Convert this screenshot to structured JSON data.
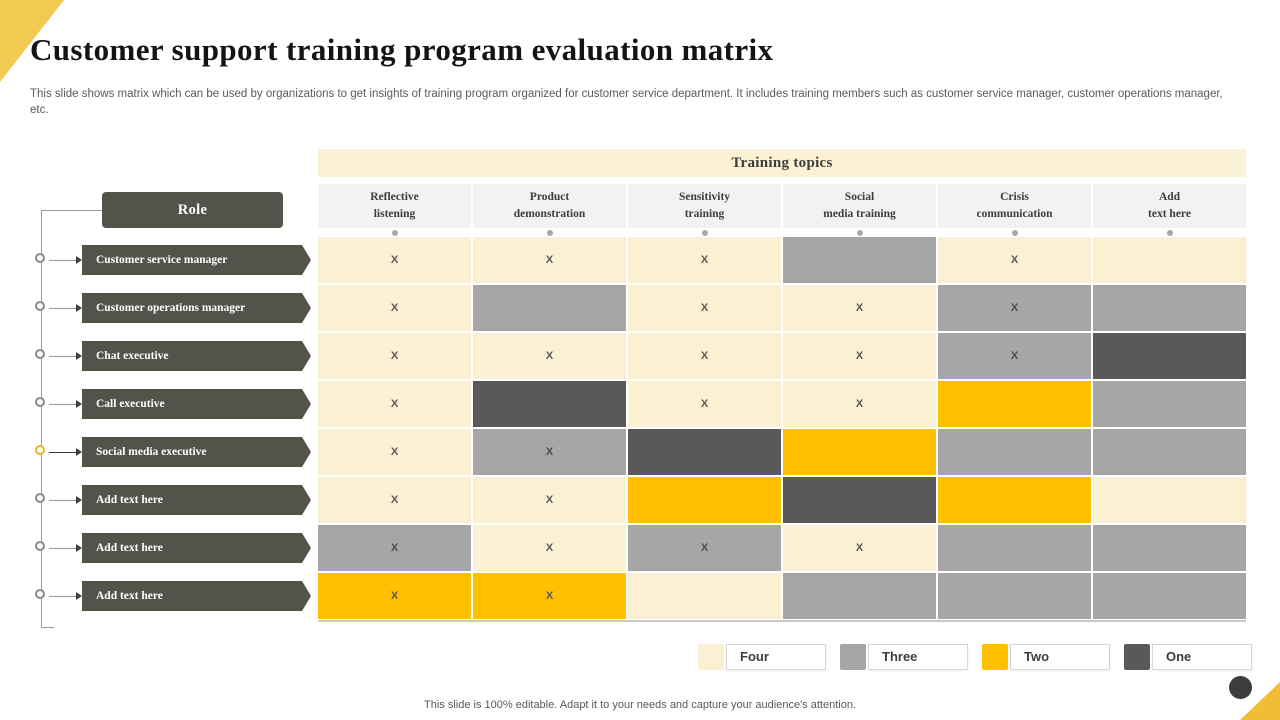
{
  "slide": {
    "title": "Customer support training program evaluation matrix",
    "description": "This slide shows matrix which can be used by organizations to get insights of training program organized for customer service department. It includes training members such as customer service manager, customer operations manager, etc.",
    "footer": "This slide is 100% editable. Adapt it to your needs and capture your audience's attention."
  },
  "theme": {
    "accent_yellow": "#FFC000",
    "corner_triangle_yellow": "#F2CA52",
    "dark_label": "#54534B",
    "cream_band": "#FBF2D5",
    "header_gray": "#F2F2F2"
  },
  "matrix": {
    "header": "Training topics",
    "role_label": "Role",
    "columns": [
      "Reflective\nlistening",
      "Product\ndemonstration",
      "Sensitivity\ntraining",
      "Social\nmedia training",
      "Crisis\ncommunication",
      "Add\ntext here"
    ],
    "levels": {
      "four": {
        "label": "Four",
        "color": "#FBF0D2"
      },
      "three": {
        "label": "Three",
        "color": "#A6A6A6"
      },
      "two": {
        "label": "Two",
        "color": "#FFC000"
      },
      "one": {
        "label": "One",
        "color": "#595959"
      }
    },
    "legend_order": [
      "four",
      "three",
      "two",
      "one"
    ],
    "rows": [
      {
        "label": "Customer service manager",
        "cells": [
          {
            "level": "four",
            "mark": "X"
          },
          {
            "level": "four",
            "mark": "X"
          },
          {
            "level": "four",
            "mark": "X"
          },
          {
            "level": "three",
            "mark": ""
          },
          {
            "level": "four",
            "mark": "X"
          },
          {
            "level": "four",
            "mark": ""
          }
        ]
      },
      {
        "label": "Customer operations manager",
        "cells": [
          {
            "level": "four",
            "mark": "X"
          },
          {
            "level": "three",
            "mark": ""
          },
          {
            "level": "four",
            "mark": "X"
          },
          {
            "level": "four",
            "mark": "X"
          },
          {
            "level": "three",
            "mark": "X"
          },
          {
            "level": "three",
            "mark": ""
          }
        ]
      },
      {
        "label": "Chat executive",
        "cells": [
          {
            "level": "four",
            "mark": "X"
          },
          {
            "level": "four",
            "mark": "X"
          },
          {
            "level": "four",
            "mark": "X"
          },
          {
            "level": "four",
            "mark": "X"
          },
          {
            "level": "three",
            "mark": "X"
          },
          {
            "level": "one",
            "mark": ""
          }
        ]
      },
      {
        "label": "Call executive",
        "cells": [
          {
            "level": "four",
            "mark": "X"
          },
          {
            "level": "one",
            "mark": ""
          },
          {
            "level": "four",
            "mark": "X"
          },
          {
            "level": "four",
            "mark": "X"
          },
          {
            "level": "two",
            "mark": ""
          },
          {
            "level": "three",
            "mark": ""
          }
        ]
      },
      {
        "label": "Social media executive",
        "accent": true,
        "cells": [
          {
            "level": "four",
            "mark": "X"
          },
          {
            "level": "three",
            "mark": "X"
          },
          {
            "level": "one",
            "mark": ""
          },
          {
            "level": "two",
            "mark": ""
          },
          {
            "level": "three",
            "mark": ""
          },
          {
            "level": "three",
            "mark": ""
          }
        ]
      },
      {
        "label": "Add text here",
        "cells": [
          {
            "level": "four",
            "mark": "X"
          },
          {
            "level": "four",
            "mark": "X"
          },
          {
            "level": "two",
            "mark": ""
          },
          {
            "level": "one",
            "mark": ""
          },
          {
            "level": "two",
            "mark": ""
          },
          {
            "level": "four",
            "mark": ""
          }
        ]
      },
      {
        "label": "Add text here",
        "cells": [
          {
            "level": "three",
            "mark": "X"
          },
          {
            "level": "four",
            "mark": "X"
          },
          {
            "level": "three",
            "mark": "X"
          },
          {
            "level": "four",
            "mark": "X"
          },
          {
            "level": "three",
            "mark": ""
          },
          {
            "level": "three",
            "mark": ""
          }
        ]
      },
      {
        "label": "Add text here",
        "cells": [
          {
            "level": "two",
            "mark": "X"
          },
          {
            "level": "two",
            "mark": "X"
          },
          {
            "level": "four",
            "mark": ""
          },
          {
            "level": "three",
            "mark": ""
          },
          {
            "level": "three",
            "mark": ""
          },
          {
            "level": "three",
            "mark": ""
          }
        ]
      }
    ]
  }
}
